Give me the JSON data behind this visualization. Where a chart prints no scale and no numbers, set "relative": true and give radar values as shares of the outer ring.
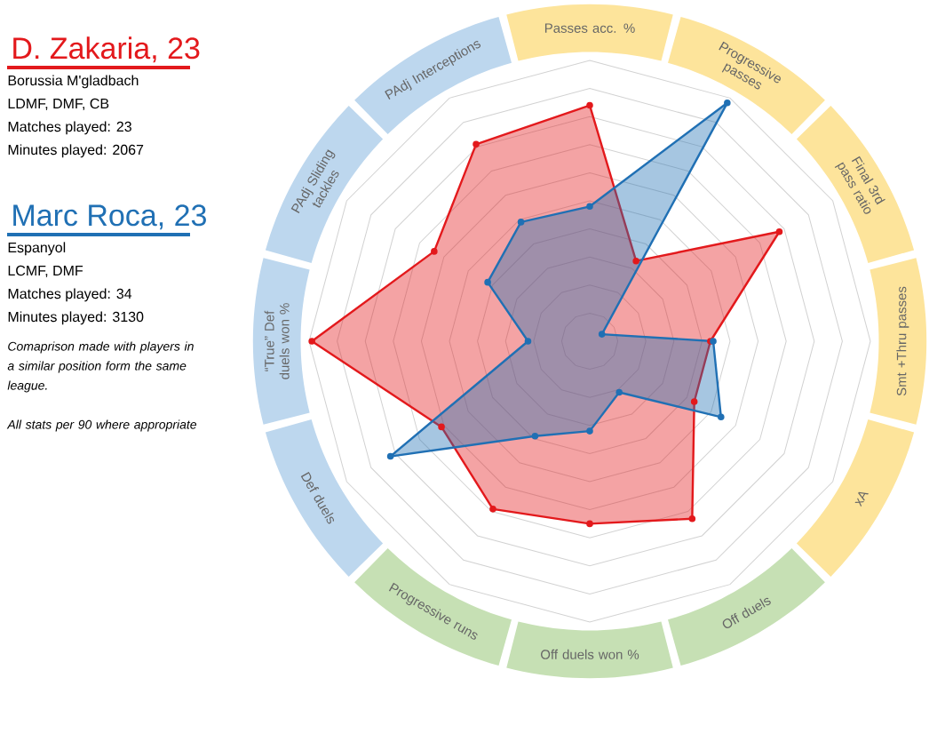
{
  "chart_data": {
    "type": "radar",
    "relative": true,
    "grid": true,
    "legend": "left",
    "marker": "circle",
    "line_style": "solid",
    "categories": [
      "Passes acc. %",
      "Progressive passes",
      "Final 3rd pass ratio",
      "Smt +Thru passes",
      "xA",
      "Off duels",
      "Off duels won %",
      "Progressive runs",
      "Def duels",
      "“True” Def duels won %",
      "PAdj Sliding tackles",
      "PAdj Interceptions"
    ],
    "series": [
      {
        "name": "D. Zakaria, 23",
        "color": "#e3191c",
        "values": [
          0.84,
          0.33,
          0.78,
          0.43,
          0.43,
          0.73,
          0.65,
          0.69,
          0.61,
          0.99,
          0.64,
          0.81
        ]
      },
      {
        "name": "Marc Roca, 23",
        "color": "#2070b4",
        "values": [
          0.48,
          0.98,
          0.05,
          0.44,
          0.54,
          0.21,
          0.32,
          0.39,
          0.82,
          0.22,
          0.42,
          0.49
        ]
      }
    ],
    "annotations": [
      "Borussia M'gladbach",
      "LDMF, DMF, CB",
      "Matches played:  23",
      "Minutes played: 2067",
      "Espanyol",
      "LCMF, DMF",
      "Matches played:  34",
      "Minutes played: 3130",
      "Comaprison made with players in a similar position form the same league.",
      "All stats per 90  where appropriate"
    ]
  }
}
